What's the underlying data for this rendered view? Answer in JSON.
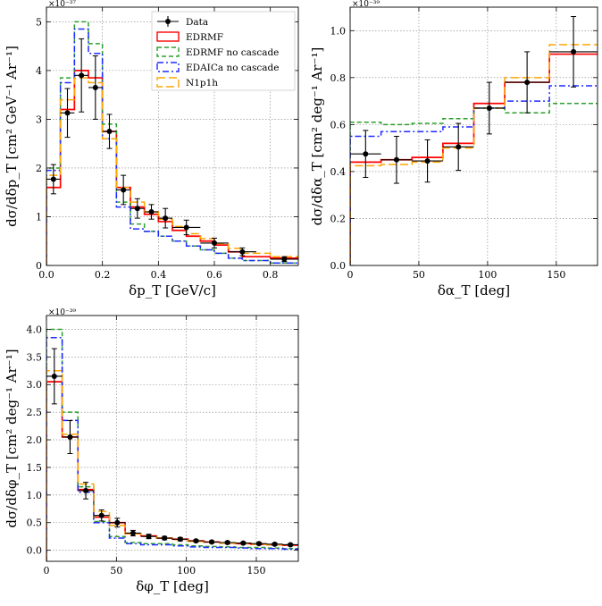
{
  "colors": {
    "data": "#000000",
    "edrmf": "#ff0000",
    "edrmf_no_cascade": "#2ca02c",
    "edaica_no_cascade": "#1f2bff",
    "n1p1h": "#ffa500"
  },
  "legend": [
    "Data",
    "EDRMF",
    "EDRMF no cascade",
    "EDAICa no cascade",
    "N1p1h"
  ],
  "chart_data": [
    {
      "type": "line",
      "xlabel": "δp_T [GeV/c]",
      "ylabel": "dσ/dδp_T [cm² GeV⁻¹ Ar⁻¹]",
      "scale_text": "×10⁻³⁷",
      "xlim": [
        0,
        0.9
      ],
      "ylim": [
        0,
        5.3
      ],
      "x_ticks": [
        0,
        0.2,
        0.4,
        0.6,
        0.8
      ],
      "x_tick_labels": [
        "0.0",
        "0.2",
        "0.4",
        "0.6",
        "0.8"
      ],
      "y_ticks": [
        0,
        1,
        2,
        3,
        4,
        5
      ],
      "y_tick_labels": [
        "0",
        "1",
        "2",
        "3",
        "4",
        "5"
      ],
      "bin_edges": [
        0,
        0.05,
        0.1,
        0.15,
        0.2,
        0.25,
        0.3,
        0.35,
        0.4,
        0.45,
        0.5,
        0.55,
        0.6,
        0.65,
        0.7,
        0.8,
        0.9
      ],
      "series": [
        {
          "name": "EDRMF",
          "key": "edrmf",
          "style": "solid",
          "values": [
            1.6,
            3.2,
            4.0,
            3.85,
            2.75,
            1.6,
            1.2,
            1.05,
            0.9,
            0.72,
            0.6,
            0.5,
            0.42,
            0.28,
            0.18,
            0.15
          ]
        },
        {
          "name": "EDRMF no cascade",
          "key": "edrmf_no_cascade",
          "style": "dashed",
          "values": [
            2.0,
            3.85,
            5.0,
            4.55,
            2.9,
            1.3,
            0.85,
            0.7,
            0.6,
            0.5,
            0.4,
            0.32,
            0.25,
            0.15,
            0.1,
            0.05
          ]
        },
        {
          "name": "EDAICa no cascade",
          "key": "edaica_no_cascade",
          "style": "dashdot",
          "values": [
            1.95,
            3.75,
            4.85,
            4.35,
            2.6,
            1.2,
            0.75,
            0.7,
            0.6,
            0.5,
            0.4,
            0.32,
            0.25,
            0.15,
            0.1,
            0.05
          ]
        },
        {
          "name": "N1p1h",
          "key": "n1p1h",
          "style": "longdash",
          "values": [
            1.85,
            3.4,
            3.85,
            3.75,
            2.6,
            1.6,
            1.3,
            1.1,
            0.95,
            0.8,
            0.65,
            0.55,
            0.45,
            0.35,
            0.25,
            0.18
          ]
        }
      ],
      "data_points": {
        "x": [
          0.025,
          0.075,
          0.125,
          0.175,
          0.225,
          0.275,
          0.325,
          0.375,
          0.425,
          0.5,
          0.6,
          0.7,
          0.85
        ],
        "y": [
          1.77,
          3.13,
          3.9,
          3.65,
          2.75,
          1.55,
          1.17,
          1.1,
          0.97,
          0.78,
          0.46,
          0.28,
          0.13
        ],
        "yerr": [
          0.3,
          0.5,
          0.75,
          0.65,
          0.35,
          0.3,
          0.2,
          0.15,
          0.2,
          0.15,
          0.1,
          0.08,
          0.05
        ],
        "xerr": [
          0.025,
          0.025,
          0.025,
          0.025,
          0.025,
          0.025,
          0.025,
          0.025,
          0.025,
          0.05,
          0.05,
          0.05,
          0.05
        ]
      }
    },
    {
      "type": "line",
      "xlabel": "δα_T [deg]",
      "ylabel": "dσ/dδα_T [cm² deg⁻¹ Ar⁻¹]",
      "scale_text": "×10⁻³⁹",
      "xlim": [
        0,
        180
      ],
      "ylim": [
        0,
        1.1
      ],
      "x_ticks": [
        0,
        50,
        100,
        150
      ],
      "x_tick_labels": [
        "0",
        "50",
        "100",
        "150"
      ],
      "y_ticks": [
        0,
        0.2,
        0.4,
        0.6,
        0.8,
        1.0
      ],
      "y_tick_labels": [
        "0.0",
        "0.2",
        "0.4",
        "0.6",
        "0.8",
        "1.0"
      ],
      "bin_edges": [
        0,
        22.5,
        45,
        67.5,
        90,
        112.5,
        145,
        180
      ],
      "series": [
        {
          "name": "EDRMF",
          "key": "edrmf",
          "style": "solid",
          "values": [
            0.44,
            0.45,
            0.46,
            0.52,
            0.69,
            0.78,
            0.9
          ]
        },
        {
          "name": "EDRMF no cascade",
          "key": "edrmf_no_cascade",
          "style": "dashed",
          "values": [
            0.61,
            0.6,
            0.605,
            0.625,
            0.67,
            0.65,
            0.69
          ]
        },
        {
          "name": "EDAICa no cascade",
          "key": "edaica_no_cascade",
          "style": "dashdot",
          "values": [
            0.55,
            0.57,
            0.57,
            0.59,
            0.67,
            0.7,
            0.765
          ]
        },
        {
          "name": "N1p1h",
          "key": "n1p1h",
          "style": "longdash",
          "values": [
            0.425,
            0.43,
            0.44,
            0.5,
            0.67,
            0.8,
            0.94
          ]
        }
      ],
      "data_points": {
        "x": [
          11.25,
          33.75,
          56.25,
          78.75,
          101.25,
          128.75,
          162.5
        ],
        "y": [
          0.475,
          0.45,
          0.445,
          0.505,
          0.67,
          0.78,
          0.91
        ],
        "yerr": [
          0.1,
          0.1,
          0.09,
          0.1,
          0.11,
          0.13,
          0.15
        ],
        "xerr": [
          11.25,
          11.25,
          11.25,
          11.25,
          11.25,
          16.25,
          17.5
        ]
      }
    },
    {
      "type": "line",
      "xlabel": "δφ_T [deg]",
      "ylabel": "dσ/dδφ_T [cm² deg⁻¹ Ar⁻¹]",
      "scale_text": "×10⁻³⁹",
      "xlim": [
        0,
        180
      ],
      "ylim": [
        -0.2,
        4.25
      ],
      "x_ticks": [
        0,
        50,
        100,
        150
      ],
      "x_tick_labels": [
        "0",
        "50",
        "100",
        "150"
      ],
      "y_ticks": [
        0,
        0.5,
        1.0,
        1.5,
        2.0,
        2.5,
        3.0,
        3.5,
        4.0
      ],
      "y_tick_labels": [
        "0.0",
        "0.5",
        "1.0",
        "1.5",
        "2.0",
        "2.5",
        "3.0",
        "3.5",
        "4.0"
      ],
      "bin_edges": [
        0,
        11.25,
        22.5,
        33.75,
        45,
        56.25,
        67.5,
        78.75,
        90,
        101.25,
        112.5,
        123.75,
        135,
        146.25,
        157.5,
        168.75,
        180
      ],
      "series": [
        {
          "name": "EDRMF",
          "key": "edrmf",
          "style": "solid",
          "values": [
            3.05,
            2.05,
            1.1,
            0.6,
            0.5,
            0.3,
            0.26,
            0.22,
            0.2,
            0.17,
            0.15,
            0.13,
            0.12,
            0.11,
            0.1,
            0.09
          ]
        },
        {
          "name": "EDRMF no cascade",
          "key": "edrmf_no_cascade",
          "style": "dashed",
          "values": [
            4.0,
            2.5,
            1.15,
            0.52,
            0.25,
            0.14,
            0.12,
            0.12,
            0.1,
            0.08,
            0.07,
            0.06,
            0.05,
            0.05,
            0.04,
            0.03
          ]
        },
        {
          "name": "EDAICa no cascade",
          "key": "edaica_no_cascade",
          "style": "dashdot",
          "values": [
            3.85,
            2.35,
            1.05,
            0.5,
            0.22,
            0.12,
            0.1,
            0.1,
            0.08,
            0.06,
            0.05,
            0.05,
            0.04,
            0.03,
            0.03,
            0.02
          ]
        },
        {
          "name": "N1p1h",
          "key": "n1p1h",
          "style": "longdash",
          "values": [
            3.25,
            2.1,
            1.2,
            0.7,
            0.45,
            0.3,
            0.25,
            0.22,
            0.19,
            0.16,
            0.15,
            0.13,
            0.12,
            0.11,
            0.1,
            0.1
          ]
        }
      ],
      "data_points": {
        "x": [
          5.625,
          16.875,
          28.125,
          39.375,
          50.625,
          61.875,
          73.125,
          84.375,
          95.625,
          106.875,
          118.125,
          129.375,
          140.625,
          151.875,
          163.125,
          174.375
        ],
        "y": [
          3.15,
          2.05,
          1.08,
          0.63,
          0.5,
          0.31,
          0.25,
          0.22,
          0.2,
          0.17,
          0.15,
          0.14,
          0.13,
          0.12,
          0.11,
          0.1
        ],
        "yerr": [
          0.5,
          0.3,
          0.15,
          0.1,
          0.08,
          0.05,
          0.04,
          0.03,
          0.03,
          0.02,
          0.02,
          0.02,
          0.02,
          0.02,
          0.02,
          0.02
        ],
        "xerr": [
          5.625,
          5.625,
          5.625,
          5.625,
          5.625,
          5.625,
          5.625,
          5.625,
          5.625,
          5.625,
          5.625,
          5.625,
          5.625,
          5.625,
          5.625,
          5.625
        ]
      }
    }
  ]
}
